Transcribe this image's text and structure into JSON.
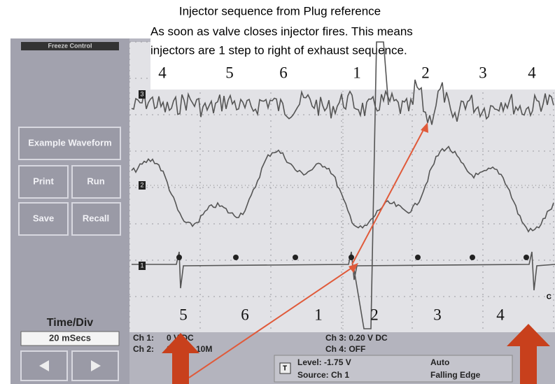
{
  "annotation": {
    "title": "Injector sequence from Plug reference",
    "line1": "As soon as valve closes injector fires. This means",
    "line2": "injectors are 1 step to right of exhaust sequence.",
    "top_sequence": [
      "4",
      "5",
      "6",
      "1",
      "2",
      "3",
      "4"
    ],
    "bottom_sequence": [
      "5",
      "6",
      "1",
      "2",
      "3",
      "4"
    ]
  },
  "panel": {
    "header": "Freeze Control",
    "buttons": [
      "Example Waveform",
      "Print",
      "Run",
      "Save",
      "Recall"
    ],
    "time_div_label": "Time/Div",
    "time_div_value": "20 mSecs"
  },
  "channels": {
    "markers": [
      "3",
      "2",
      "1"
    ],
    "side_marker": "C"
  },
  "status": {
    "ch1_label": "Ch 1:",
    "ch1_value": "0 V DC",
    "ch2_label": "Ch 2:",
    "ch2_value": "0 V DC 10M",
    "ch3": "Ch 3: 0.20 V DC",
    "ch4": "Ch 4: OFF",
    "trigger_icon": "T",
    "level": "Level: -1.75 V",
    "source": "Source: Ch 1",
    "mode": "Auto",
    "edge": "Falling Edge"
  }
}
